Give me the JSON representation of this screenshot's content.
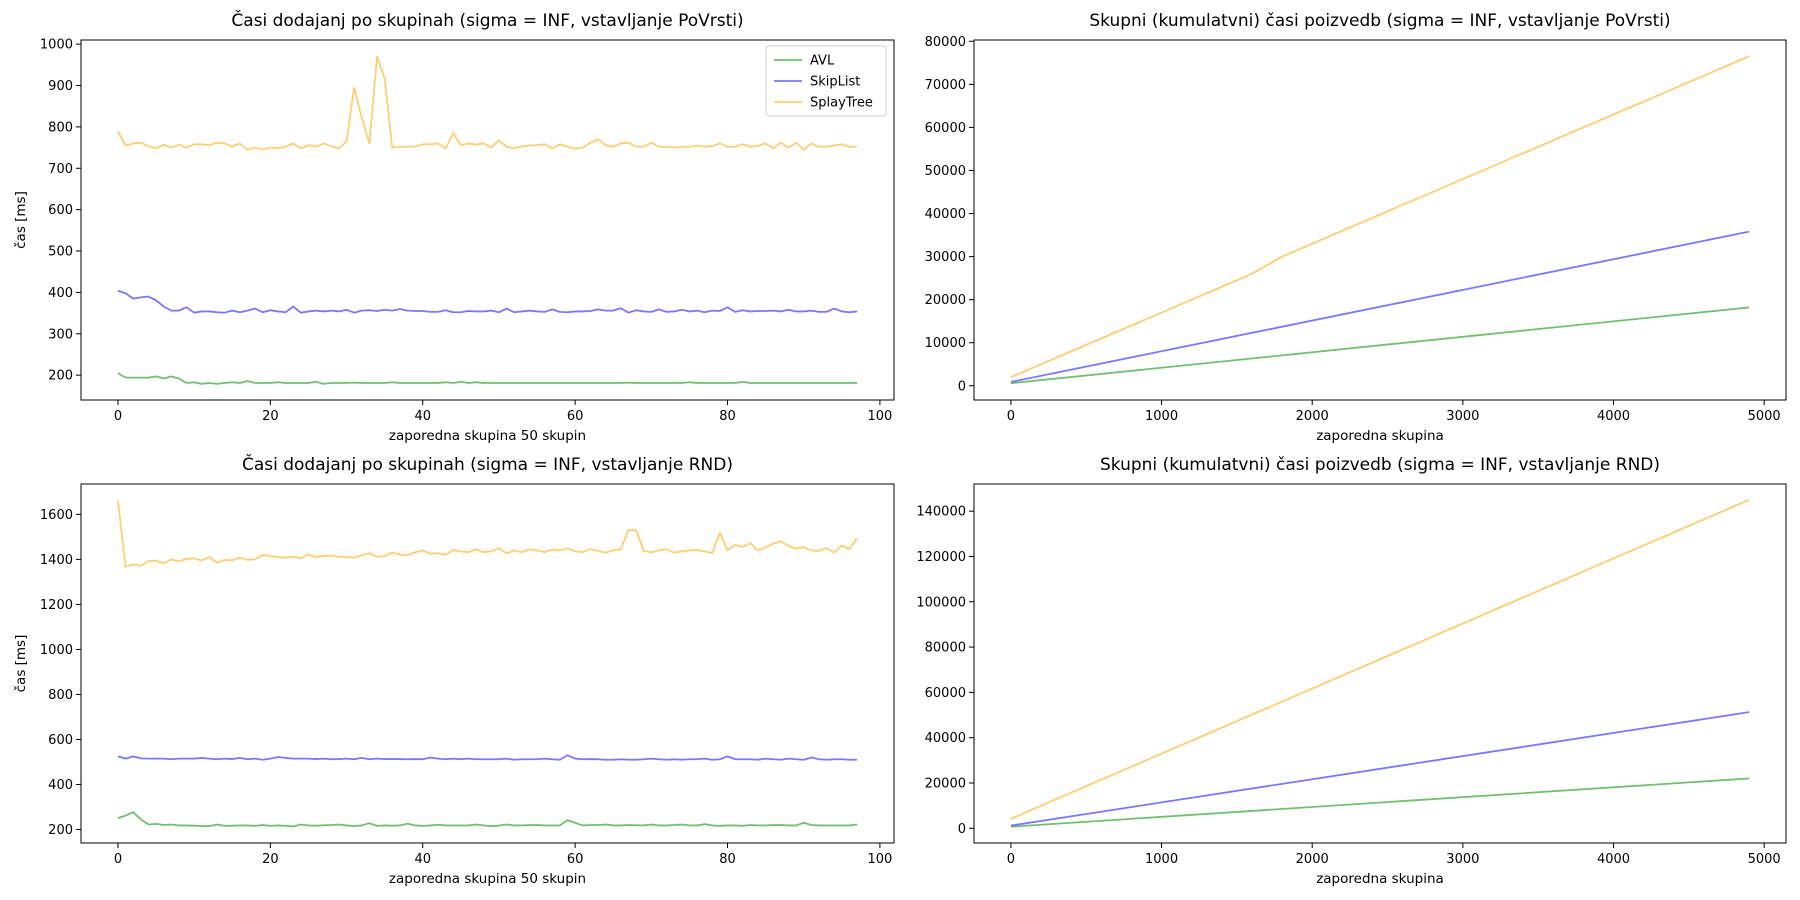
{
  "figure": {
    "series_names": [
      "AVL",
      "SkipList",
      "SplayTree"
    ],
    "series_colors": [
      "#4daf4a",
      "#5555ff",
      "#ffc04c"
    ]
  },
  "chart_data": [
    {
      "type": "line",
      "title": "Časi dodajanj po skupinah (sigma = INF, vstavljanje PoVrsti)",
      "xlabel": "zaporedna skupina 50 skupin",
      "ylabel": "čas [ms]",
      "xlim": [
        -4.85,
        101.85
      ],
      "ylim": [
        140,
        1010
      ],
      "xticks": [
        0,
        20,
        40,
        60,
        80,
        100
      ],
      "yticks": [
        200,
        300,
        400,
        500,
        600,
        700,
        800,
        900,
        1000
      ],
      "legend": "top-right",
      "x_start": 0,
      "series": [
        {
          "name": "AVL",
          "color": "#4daf4a",
          "values": [
            205,
            194,
            194,
            194,
            194,
            197,
            192,
            197,
            192,
            181,
            183,
            179,
            181,
            179,
            181,
            183,
            181,
            186,
            181,
            181,
            181,
            183,
            181,
            181,
            181,
            181,
            184,
            179,
            181,
            181,
            181,
            182,
            181,
            181,
            181,
            181,
            183,
            181,
            181,
            181,
            181,
            181,
            181,
            183,
            181,
            184,
            181,
            183,
            181,
            181,
            181,
            181,
            181,
            181,
            181,
            181,
            181,
            181,
            181,
            181,
            181,
            181,
            181,
            181,
            181,
            181,
            181,
            182,
            181,
            181,
            181,
            181,
            181,
            181,
            181,
            183,
            181,
            181,
            181,
            181,
            181,
            181,
            184,
            181,
            181,
            181,
            181,
            181,
            181,
            181,
            181,
            181,
            181,
            181,
            181,
            181,
            181,
            181
          ]
        },
        {
          "name": "SkipList",
          "color": "#5555ff",
          "values": [
            404,
            398,
            385,
            388,
            390,
            381,
            366,
            356,
            356,
            364,
            351,
            354,
            354,
            352,
            351,
            356,
            352,
            356,
            361,
            352,
            357,
            354,
            352,
            366,
            351,
            354,
            356,
            354,
            356,
            354,
            358,
            351,
            356,
            357,
            355,
            358,
            356,
            360,
            356,
            355,
            355,
            353,
            353,
            357,
            352,
            352,
            355,
            354,
            354,
            356,
            352,
            361,
            352,
            354,
            356,
            354,
            353,
            359,
            353,
            352,
            354,
            354,
            355,
            359,
            356,
            356,
            362,
            351,
            357,
            354,
            353,
            359,
            353,
            354,
            358,
            354,
            356,
            352,
            356,
            355,
            364,
            353,
            357,
            354,
            355,
            355,
            356,
            354,
            358,
            354,
            354,
            356,
            353,
            353,
            361,
            354,
            352,
            354
          ]
        },
        {
          "name": "SplayTree",
          "color": "#ffc04c",
          "values": [
            790,
            755,
            760,
            762,
            753,
            748,
            757,
            750,
            757,
            750,
            758,
            758,
            756,
            762,
            760,
            752,
            760,
            745,
            750,
            745,
            750,
            749,
            752,
            760,
            748,
            756,
            752,
            760,
            753,
            748,
            765,
            895,
            822,
            760,
            970,
            917,
            750,
            752,
            752,
            753,
            758,
            758,
            760,
            748,
            785,
            756,
            760,
            757,
            760,
            750,
            768,
            752,
            748,
            753,
            755,
            756,
            758,
            748,
            758,
            752,
            748,
            750,
            762,
            770,
            756,
            752,
            760,
            762,
            752,
            752,
            762,
            752,
            752,
            750,
            752,
            752,
            755,
            752,
            754,
            760,
            752,
            752,
            758,
            752,
            754,
            760,
            748,
            762,
            750,
            762,
            745,
            760,
            752,
            752,
            755,
            758,
            752,
            752
          ]
        }
      ]
    },
    {
      "type": "line",
      "title": "Skupni (kumulatvni) časi poizvedb (sigma = INF, vstavljanje PoVrsti)",
      "xlabel": "zaporedna skupina",
      "ylabel": "",
      "xlim": [
        -245,
        5145
      ],
      "ylim": [
        -3300,
        80300
      ],
      "xticks": [
        0,
        1000,
        2000,
        3000,
        4000,
        5000
      ],
      "yticks": [
        0,
        10000,
        20000,
        30000,
        40000,
        50000,
        60000,
        70000,
        80000
      ],
      "legend": "none",
      "series": [
        {
          "name": "AVL",
          "color": "#4daf4a",
          "x": [
            0,
            4900
          ],
          "values": [
            600,
            18200
          ]
        },
        {
          "name": "SkipList",
          "color": "#5555ff",
          "x": [
            0,
            4900
          ],
          "values": [
            900,
            35800
          ]
        },
        {
          "name": "SplayTree",
          "color": "#ffc04c",
          "x": [
            0,
            1600,
            1800,
            4900
          ],
          "values": [
            2000,
            26000,
            30000,
            76500
          ]
        }
      ]
    },
    {
      "type": "line",
      "title": "Časi dodajanj po skupinah (sigma = INF, vstavljanje RND)",
      "xlabel": "zaporedna skupina 50 skupin",
      "ylabel": "čas [ms]",
      "xlim": [
        -4.85,
        101.85
      ],
      "ylim": [
        140,
        1735
      ],
      "xticks": [
        0,
        20,
        40,
        60,
        80,
        100
      ],
      "yticks": [
        200,
        400,
        600,
        800,
        1000,
        1200,
        1400,
        1600
      ],
      "legend": "none",
      "x_start": 0,
      "series": [
        {
          "name": "AVL",
          "color": "#4daf4a",
          "values": [
            250,
            262,
            277,
            245,
            222,
            225,
            220,
            222,
            218,
            218,
            217,
            215,
            215,
            222,
            216,
            217,
            218,
            218,
            216,
            220,
            216,
            218,
            216,
            214,
            222,
            218,
            217,
            219,
            220,
            222,
            218,
            215,
            218,
            228,
            216,
            218,
            217,
            218,
            226,
            218,
            216,
            218,
            221,
            218,
            218,
            218,
            218,
            222,
            218,
            215,
            217,
            222,
            218,
            218,
            220,
            220,
            218,
            218,
            218,
            242,
            230,
            218,
            220,
            220,
            222,
            218,
            218,
            220,
            219,
            218,
            222,
            218,
            218,
            220,
            222,
            218,
            218,
            224,
            218,
            216,
            218,
            218,
            216,
            220,
            218,
            218,
            220,
            220,
            218,
            218,
            230,
            220,
            218,
            218,
            218,
            218,
            218,
            222
          ]
        },
        {
          "name": "SkipList",
          "color": "#5555ff",
          "values": [
            525,
            515,
            525,
            516,
            515,
            515,
            515,
            512,
            515,
            515,
            515,
            518,
            515,
            512,
            515,
            513,
            518,
            512,
            515,
            510,
            515,
            522,
            518,
            515,
            515,
            515,
            513,
            515,
            512,
            513,
            515,
            512,
            518,
            512,
            515,
            513,
            513,
            513,
            512,
            513,
            512,
            520,
            515,
            512,
            515,
            512,
            515,
            512,
            512,
            512,
            512,
            515,
            510,
            512,
            512,
            512,
            515,
            512,
            510,
            530,
            515,
            512,
            513,
            512,
            510,
            510,
            512,
            510,
            510,
            512,
            515,
            512,
            510,
            512,
            510,
            512,
            512,
            515,
            510,
            512,
            525,
            512,
            512,
            512,
            510,
            515,
            512,
            510,
            515,
            512,
            510,
            520,
            512,
            510,
            512,
            512,
            510,
            510
          ]
        },
        {
          "name": "SplayTree",
          "color": "#ffc04c",
          "values": [
            1660,
            1368,
            1378,
            1372,
            1392,
            1395,
            1382,
            1400,
            1392,
            1402,
            1405,
            1395,
            1410,
            1385,
            1398,
            1396,
            1408,
            1398,
            1400,
            1420,
            1415,
            1410,
            1408,
            1412,
            1405,
            1422,
            1410,
            1415,
            1418,
            1412,
            1410,
            1408,
            1418,
            1428,
            1412,
            1415,
            1430,
            1422,
            1418,
            1432,
            1440,
            1425,
            1428,
            1420,
            1442,
            1435,
            1432,
            1445,
            1432,
            1436,
            1450,
            1426,
            1440,
            1432,
            1445,
            1440,
            1432,
            1444,
            1440,
            1448,
            1436,
            1432,
            1446,
            1438,
            1430,
            1440,
            1445,
            1530,
            1530,
            1438,
            1432,
            1440,
            1445,
            1430,
            1436,
            1440,
            1442,
            1435,
            1428,
            1518,
            1440,
            1465,
            1455,
            1472,
            1440,
            1455,
            1470,
            1480,
            1460,
            1448,
            1455,
            1440,
            1438,
            1450,
            1430,
            1462,
            1445,
            1495
          ]
        }
      ]
    },
    {
      "type": "line",
      "title": "Skupni (kumulatvni) časi poizvedb (sigma = INF, vstavljanje RND)",
      "xlabel": "zaporedna skupina",
      "ylabel": "",
      "xlim": [
        -245,
        5145
      ],
      "ylim": [
        -6500,
        152000
      ],
      "xticks": [
        0,
        1000,
        2000,
        3000,
        4000,
        5000
      ],
      "yticks": [
        0,
        20000,
        40000,
        60000,
        80000,
        100000,
        120000,
        140000
      ],
      "legend": "none",
      "series": [
        {
          "name": "AVL",
          "color": "#4daf4a",
          "x": [
            0,
            4900
          ],
          "values": [
            700,
            22000
          ]
        },
        {
          "name": "SkipList",
          "color": "#5555ff",
          "x": [
            0,
            4900
          ],
          "values": [
            1200,
            51300
          ]
        },
        {
          "name": "SplayTree",
          "color": "#ffc04c",
          "x": [
            0,
            4900
          ],
          "values": [
            4200,
            145000
          ]
        }
      ]
    }
  ]
}
